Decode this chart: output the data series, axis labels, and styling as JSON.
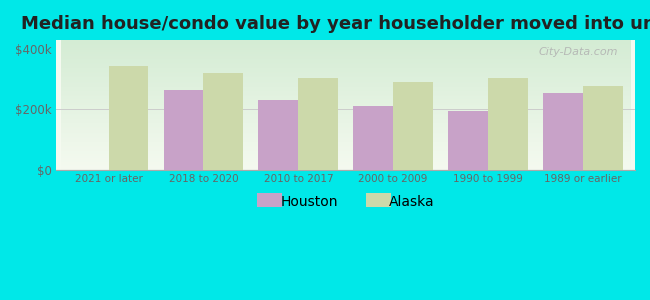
{
  "title": "Median house/condo value by year householder moved into unit",
  "categories": [
    "2021 or later",
    "2018 to 2020",
    "2010 to 2017",
    "2000 to 2009",
    "1990 to 1999",
    "1989 or earlier"
  ],
  "houston_values": [
    0,
    265000,
    230000,
    210000,
    195000,
    255000
  ],
  "alaska_values": [
    345000,
    320000,
    305000,
    290000,
    305000,
    278000
  ],
  "houston_color": "#c8a2c8",
  "alaska_color": "#ccd9aa",
  "background_color": "#00e8e8",
  "plot_bg_top": "#d4ecd4",
  "plot_bg_bottom": "#f5faf0",
  "yticks": [
    0,
    200000,
    400000
  ],
  "ylabels": [
    "$0",
    "$200k",
    "$400k"
  ],
  "ylim": [
    0,
    430000
  ],
  "bar_width": 0.42,
  "legend_houston": "Houston",
  "legend_alaska": "Alaska",
  "watermark": "City-Data.com",
  "title_fontsize": 13,
  "tick_color": "#666666",
  "axis_label_color": "#666666"
}
